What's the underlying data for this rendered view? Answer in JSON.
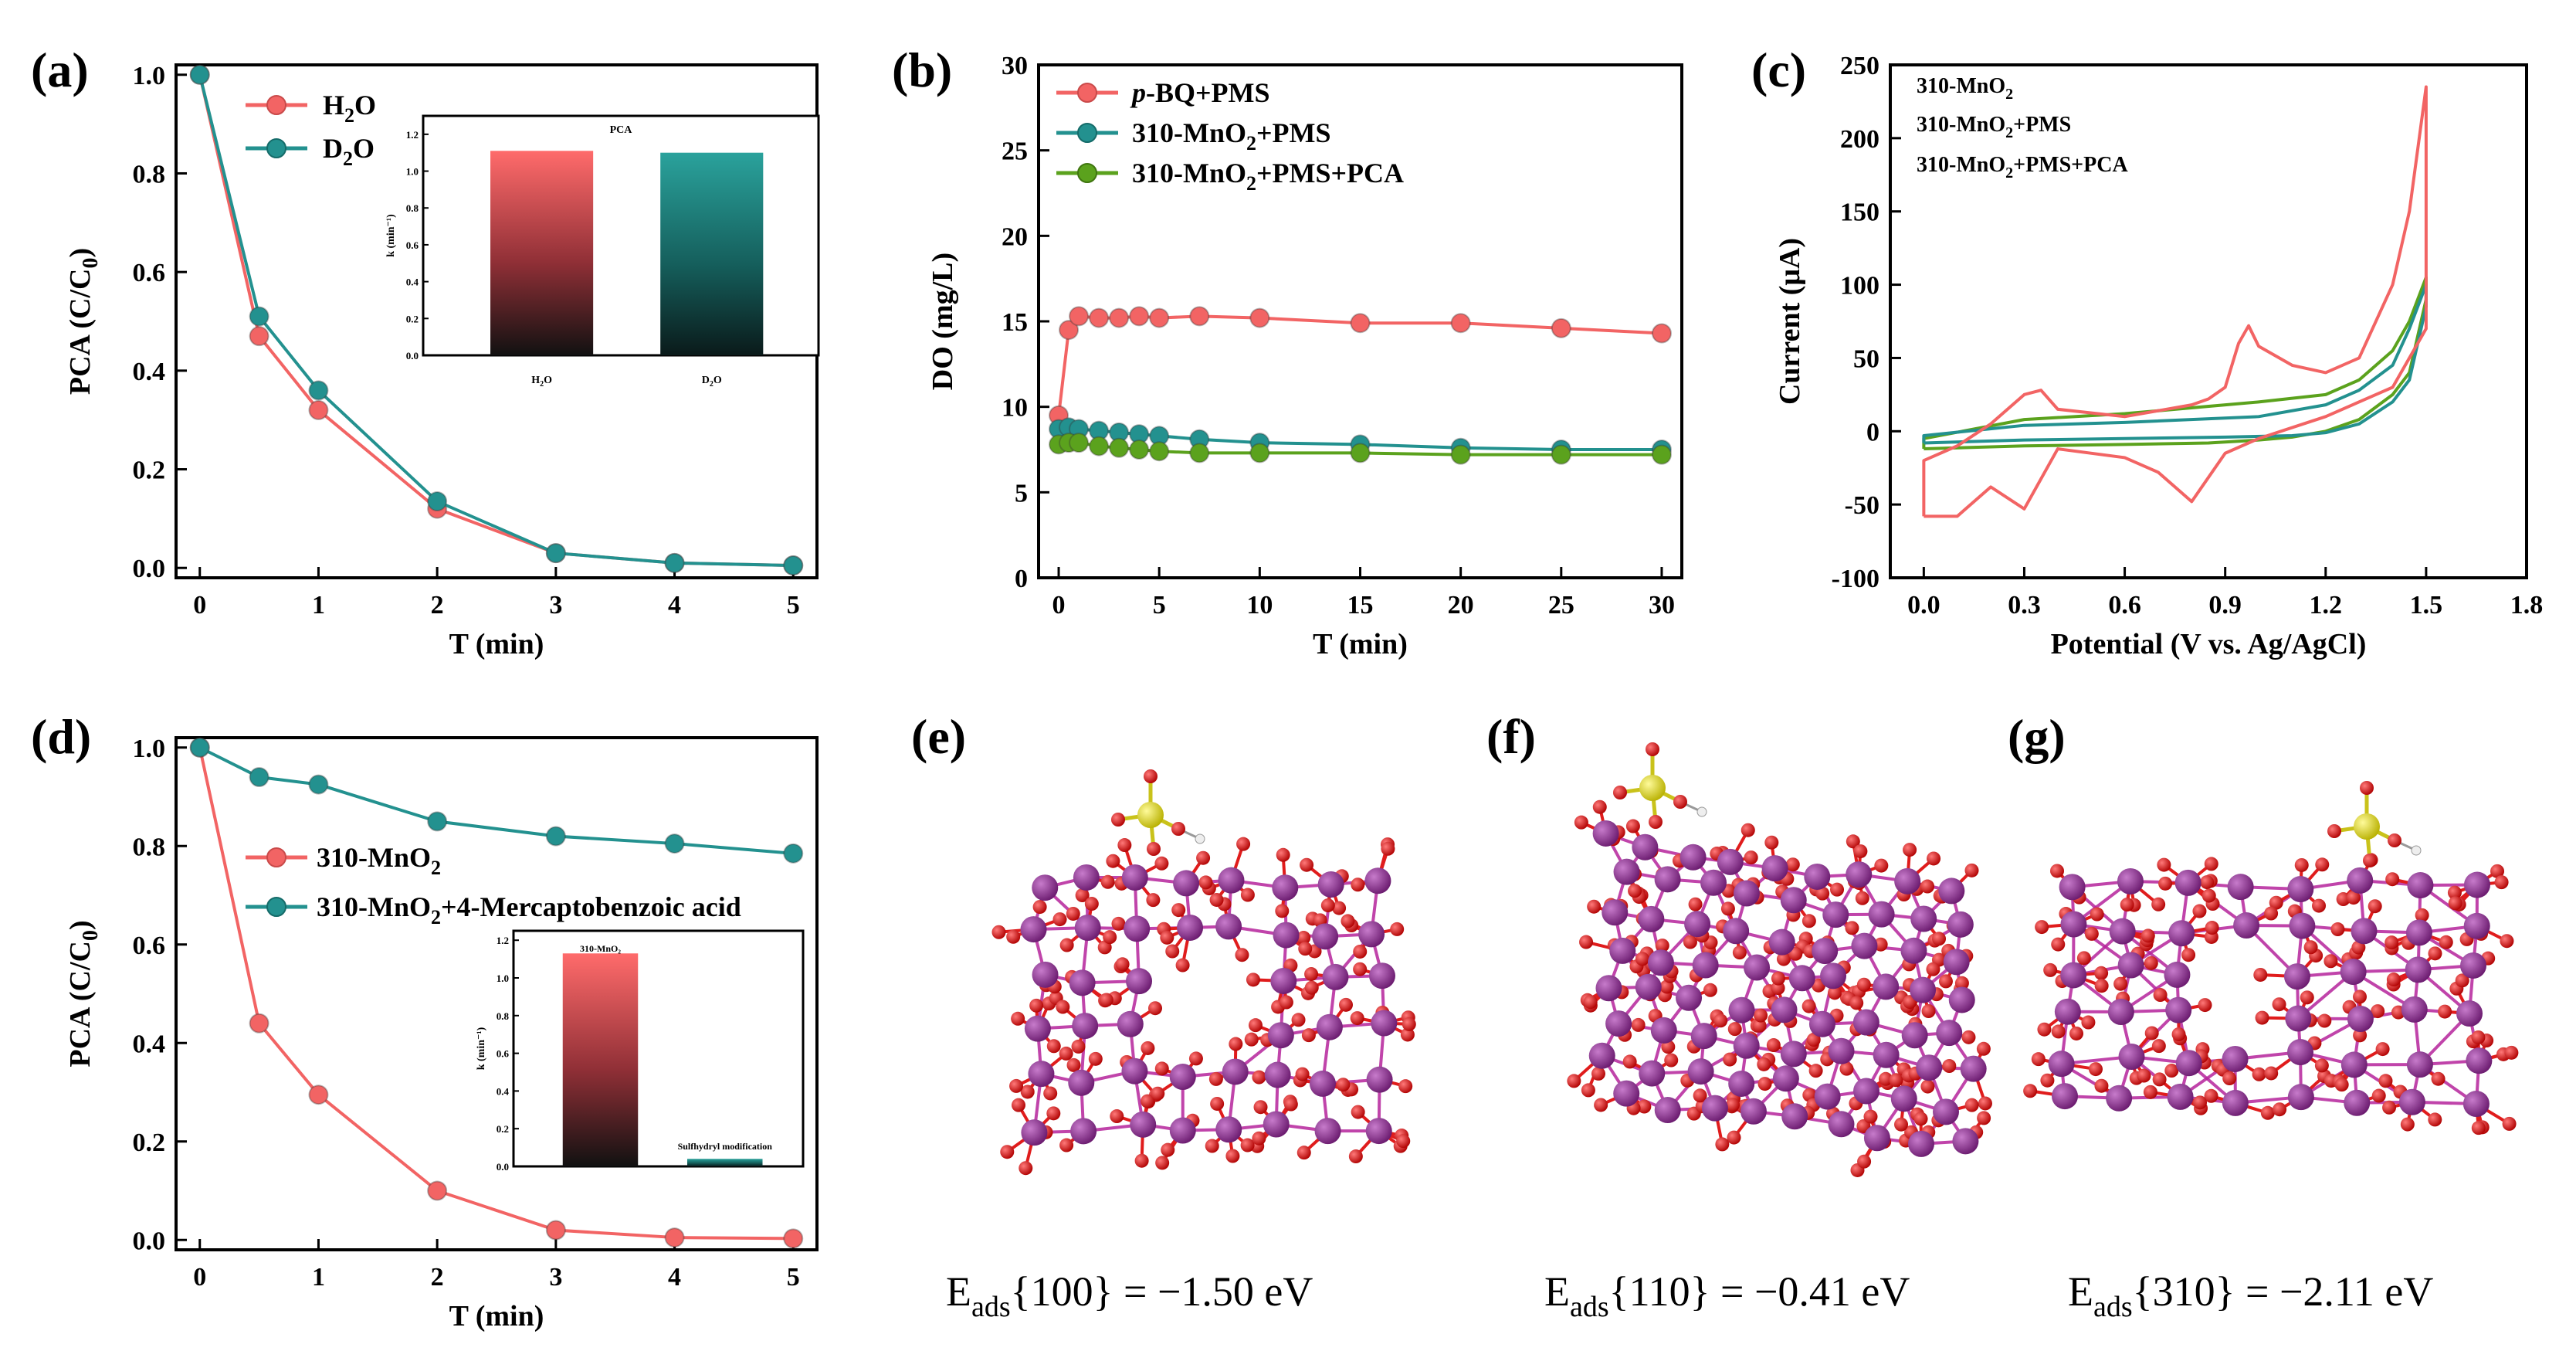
{
  "colors": {
    "red": "#f26464",
    "teal": "#23918f",
    "green": "#5ba21d",
    "mn": "#8b2b8e",
    "o": "#e01c1c",
    "s": "#d8d51e",
    "bond": "#b5239b"
  },
  "panels": {
    "a": {
      "label": "(a)",
      "xlabel": "T (min)",
      "ylabel_main": "PCA (C/C",
      "ylabel_sub": "0",
      "ylabel_end": ")",
      "legend": [
        {
          "main": "H",
          "sub": "2",
          "end": "O"
        },
        {
          "main": "D",
          "sub": "2",
          "end": "O"
        }
      ],
      "inset": {
        "title": "PCA",
        "ylabel": "k (min⁻¹)",
        "cat1": {
          "main": "H",
          "sub": "2",
          "end": "O"
        },
        "cat2": {
          "main": "D",
          "sub": "2",
          "end": "O"
        }
      }
    },
    "b": {
      "label": "(b)",
      "xlabel": "T (min)",
      "ylabel": "DO (mg/L)",
      "legend": [
        {
          "pre": "p",
          "main": "-BQ+PMS"
        },
        {
          "main": "310-MnO",
          "sub": "2",
          "end": "+PMS"
        },
        {
          "main": "310-MnO",
          "sub": "2",
          "end": "+PMS+PCA"
        }
      ]
    },
    "c": {
      "label": "(c)",
      "xlabel": "Potential (V vs. Ag/AgCl)",
      "ylabel": "Current (μA)",
      "legend": [
        {
          "main": "310-MnO",
          "sub": "2",
          "end": ""
        },
        {
          "main": "310-MnO",
          "sub": "2",
          "end": "+PMS"
        },
        {
          "main": "310-MnO",
          "sub": "2",
          "end": "+PMS+PCA"
        }
      ]
    },
    "d": {
      "label": "(d)",
      "xlabel": "T (min)",
      "ylabel_main": "PCA (C/C",
      "ylabel_sub": "0",
      "ylabel_end": ")",
      "legend": [
        {
          "main": "310-MnO",
          "sub": "2",
          "end": ""
        },
        {
          "main": "310-MnO",
          "sub": "2",
          "end": "+4-Mercaptobenzoic acid"
        }
      ],
      "inset": {
        "title": "310-MnO₂",
        "ylabel": "k (min⁻¹)",
        "cat2": "Sulfhydryl modification"
      }
    },
    "e": {
      "label": "(e)",
      "eads": {
        "main": "E",
        "sub": "ads",
        "end": "{100} = −1.50 eV"
      }
    },
    "f": {
      "label": "(f)",
      "eads": {
        "main": "E",
        "sub": "ads",
        "end": "{110} = −0.41 eV"
      }
    },
    "g": {
      "label": "(g)",
      "eads": {
        "main": "E",
        "sub": "ads",
        "end": "{310} = −2.11 eV"
      }
    }
  },
  "chart_data": [
    {
      "id": "a",
      "type": "line",
      "title": "",
      "xlabel": "T (min)",
      "ylabel": "PCA (C/C0)",
      "xlim": [
        -0.2,
        5.2
      ],
      "ylim": [
        -0.02,
        1.02
      ],
      "xticks": [
        0,
        1,
        2,
        3,
        4,
        5
      ],
      "yticks": [
        0.0,
        0.2,
        0.4,
        0.6,
        0.8,
        1.0
      ],
      "series": [
        {
          "name": "H2O",
          "color": "#f26464",
          "x": [
            0,
            0.5,
            1,
            2,
            3,
            4,
            5
          ],
          "y": [
            1.0,
            0.47,
            0.32,
            0.12,
            0.03,
            0.01,
            0.005
          ]
        },
        {
          "name": "D2O",
          "color": "#23918f",
          "x": [
            0,
            0.5,
            1,
            2,
            3,
            4,
            5
          ],
          "y": [
            1.0,
            0.51,
            0.36,
            0.135,
            0.03,
            0.01,
            0.005
          ]
        }
      ]
    },
    {
      "id": "a-inset",
      "type": "bar",
      "title": "PCA",
      "categories": [
        "H2O",
        "D2O"
      ],
      "values": [
        1.11,
        1.1
      ],
      "ylim": [
        0,
        1.3
      ],
      "yticks": [
        0.0,
        0.2,
        0.4,
        0.6,
        0.8,
        1.0,
        1.2
      ]
    },
    {
      "id": "b",
      "type": "line",
      "xlabel": "T (min)",
      "ylabel": "DO (mg/L)",
      "xlim": [
        -1,
        31
      ],
      "ylim": [
        0,
        30
      ],
      "xticks": [
        0,
        5,
        10,
        15,
        20,
        25,
        30
      ],
      "yticks": [
        0,
        5,
        10,
        15,
        20,
        25,
        30
      ],
      "series": [
        {
          "name": "p-BQ+PMS",
          "color": "#f26464",
          "x": [
            0,
            0.5,
            1,
            2,
            3,
            4,
            5,
            7,
            10,
            15,
            20,
            25,
            30
          ],
          "y": [
            9.5,
            14.5,
            15.3,
            15.2,
            15.2,
            15.3,
            15.2,
            15.3,
            15.2,
            14.9,
            14.9,
            14.6,
            14.3
          ]
        },
        {
          "name": "310-MnO2+PMS",
          "color": "#23918f",
          "x": [
            0,
            0.5,
            1,
            2,
            3,
            4,
            5,
            7,
            10,
            15,
            20,
            25,
            30
          ],
          "y": [
            8.7,
            8.8,
            8.7,
            8.6,
            8.5,
            8.4,
            8.3,
            8.1,
            7.9,
            7.8,
            7.6,
            7.5,
            7.5
          ]
        },
        {
          "name": "310-MnO2+PMS+PCA",
          "color": "#5ba21d",
          "x": [
            0,
            0.5,
            1,
            2,
            3,
            4,
            5,
            7,
            10,
            15,
            20,
            25,
            30
          ],
          "y": [
            7.8,
            7.9,
            7.9,
            7.7,
            7.6,
            7.5,
            7.4,
            7.3,
            7.3,
            7.3,
            7.2,
            7.2,
            7.2
          ]
        }
      ]
    },
    {
      "id": "c",
      "type": "line",
      "xlabel": "Potential (V vs. Ag/AgCl)",
      "ylabel": "Current (μA)",
      "xlim": [
        -0.1,
        1.8
      ],
      "ylim": [
        -100,
        250
      ],
      "xticks": [
        0.0,
        0.3,
        0.6,
        0.9,
        1.2,
        1.5,
        1.8
      ],
      "yticks": [
        -100,
        -50,
        0,
        50,
        100,
        150,
        200,
        250
      ],
      "series": [
        {
          "name": "310-MnO2",
          "color": "#5ba21d",
          "x": [
            0,
            0.3,
            0.6,
            0.85,
            1.0,
            1.1,
            1.2,
            1.3,
            1.4,
            1.45,
            1.5,
            1.5,
            1.45,
            1.4,
            1.3,
            1.2,
            1.0,
            0.6,
            0.3,
            0
          ],
          "y": [
            -12,
            -10,
            -9,
            -8,
            -6,
            -4,
            0,
            8,
            25,
            40,
            90,
            105,
            75,
            55,
            35,
            25,
            20,
            12,
            8,
            -5
          ]
        },
        {
          "name": "310-MnO2+PMS",
          "color": "#23918f",
          "x": [
            0,
            0.3,
            0.6,
            0.9,
            1.1,
            1.2,
            1.3,
            1.4,
            1.45,
            1.5,
            1.5,
            1.45,
            1.4,
            1.3,
            1.2,
            1.0,
            0.6,
            0.3,
            0
          ],
          "y": [
            -8,
            -6,
            -5,
            -4,
            -3,
            -1,
            5,
            20,
            35,
            85,
            100,
            70,
            45,
            28,
            18,
            10,
            6,
            4,
            -3
          ]
        },
        {
          "name": "310-MnO2+PMS+PCA",
          "color": "#f26464",
          "x": [
            0,
            0.1,
            0.2,
            0.3,
            0.4,
            0.6,
            0.7,
            0.8,
            0.9,
            1.0,
            1.2,
            1.4,
            1.5,
            1.5,
            1.45,
            1.4,
            1.3,
            1.2,
            1.1,
            1.0,
            0.97,
            0.94,
            0.9,
            0.85,
            0.8,
            0.6,
            0.4,
            0.35,
            0.3,
            0.2,
            0.1,
            0
          ],
          "y": [
            -58,
            -58,
            -38,
            -53,
            -12,
            -18,
            -28,
            -48,
            -15,
            -5,
            10,
            30,
            70,
            235,
            150,
            100,
            50,
            40,
            45,
            58,
            72,
            60,
            30,
            22,
            18,
            10,
            15,
            28,
            25,
            5,
            -10,
            -20
          ]
        }
      ]
    },
    {
      "id": "d",
      "type": "line",
      "xlabel": "T (min)",
      "ylabel": "PCA (C/C0)",
      "xlim": [
        -0.2,
        5.2
      ],
      "ylim": [
        -0.02,
        1.02
      ],
      "xticks": [
        0,
        1,
        2,
        3,
        4,
        5
      ],
      "yticks": [
        0.0,
        0.2,
        0.4,
        0.6,
        0.8,
        1.0
      ],
      "series": [
        {
          "name": "310-MnO2",
          "color": "#f26464",
          "x": [
            0,
            0.5,
            1,
            2,
            3,
            4,
            5
          ],
          "y": [
            1.0,
            0.44,
            0.295,
            0.1,
            0.02,
            0.005,
            0.003
          ]
        },
        {
          "name": "310-MnO2+4-Mercaptobenzoic acid",
          "color": "#23918f",
          "x": [
            0,
            0.5,
            1,
            2,
            3,
            4,
            5
          ],
          "y": [
            1.0,
            0.94,
            0.925,
            0.85,
            0.82,
            0.805,
            0.785
          ]
        }
      ]
    },
    {
      "id": "d-inset",
      "type": "bar",
      "title": "310-MnO2",
      "categories": [
        "310-MnO2",
        "Sulfhydryl modification"
      ],
      "values": [
        1.13,
        0.04
      ],
      "ylim": [
        0,
        1.25
      ],
      "yticks": [
        0.0,
        0.2,
        0.4,
        0.6,
        0.8,
        1.0,
        1.2
      ]
    }
  ]
}
